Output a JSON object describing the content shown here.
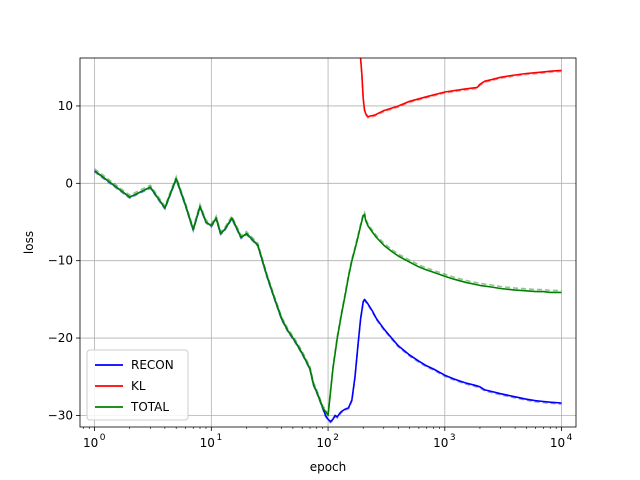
{
  "chart_data": {
    "type": "line",
    "title": "",
    "xlabel": "epoch",
    "ylabel": "loss",
    "xscale": "log",
    "xlim": [
      0.75,
      13300
    ],
    "ylim": [
      -31.5,
      16.2
    ],
    "grid": true,
    "legend_position": "lower-left",
    "x_ticks": [
      {
        "value": 1,
        "base": "10",
        "exp": "0"
      },
      {
        "value": 10,
        "base": "10",
        "exp": "1"
      },
      {
        "value": 100,
        "base": "10",
        "exp": "2"
      },
      {
        "value": 1000,
        "base": "10",
        "exp": "3"
      },
      {
        "value": 10000,
        "base": "10",
        "exp": "4"
      }
    ],
    "y_ticks": [
      {
        "value": 10,
        "label": "10"
      },
      {
        "value": 0,
        "label": "0"
      },
      {
        "value": -10,
        "label": "−10"
      },
      {
        "value": -20,
        "label": "−20"
      },
      {
        "value": -30,
        "label": "−30"
      }
    ],
    "series": [
      {
        "name": "RECON",
        "color": "#0000ff",
        "x": [
          1,
          2,
          3,
          4,
          5,
          6,
          7,
          8,
          9,
          10,
          11,
          12,
          13,
          15,
          18,
          20,
          25,
          30,
          35,
          40,
          45,
          50,
          55,
          60,
          65,
          70,
          75,
          80,
          85,
          90,
          95,
          100,
          105,
          110,
          115,
          120,
          125,
          130,
          140,
          150,
          160,
          170,
          180,
          190,
          200,
          205,
          210,
          220,
          240,
          260,
          300,
          350,
          400,
          500,
          600,
          700,
          800,
          1000,
          1200,
          1500,
          1800,
          2000,
          2200,
          2500,
          3000,
          4000,
          5000,
          6000,
          7000,
          8000,
          10000
        ],
        "y": [
          1.6,
          -1.8,
          -0.5,
          -3.2,
          0.6,
          -2.8,
          -6.0,
          -3.0,
          -5.0,
          -5.5,
          -4.5,
          -6.5,
          -6.0,
          -4.5,
          -7.0,
          -6.5,
          -8.0,
          -12.0,
          -15.0,
          -17.5,
          -19.0,
          -20.0,
          -21.0,
          -22.0,
          -23.0,
          -24.0,
          -26.0,
          -27.0,
          -28.0,
          -29.0,
          -30.0,
          -30.5,
          -30.8,
          -30.5,
          -30.0,
          -30.2,
          -29.8,
          -29.5,
          -29.2,
          -29.0,
          -28.0,
          -25.0,
          -21.0,
          -17.5,
          -15.3,
          -15.0,
          -15.2,
          -15.6,
          -16.5,
          -17.5,
          -18.8,
          -20.0,
          -21.0,
          -22.2,
          -23.0,
          -23.6,
          -24.0,
          -24.8,
          -25.3,
          -25.8,
          -26.1,
          -26.3,
          -26.7,
          -26.9,
          -27.2,
          -27.6,
          -27.9,
          -28.1,
          -28.2,
          -28.3,
          -28.4
        ]
      },
      {
        "name": "KL",
        "color": "#ff0000",
        "x": [
          190,
          195,
          200,
          205,
          210,
          220,
          230,
          250,
          300,
          400,
          500,
          700,
          1000,
          1500,
          1900,
          2000,
          2200,
          2500,
          3000,
          4000,
          5000,
          6000,
          7000,
          8000,
          10000
        ],
        "y": [
          16.2,
          14.0,
          11.0,
          9.5,
          9.0,
          8.6,
          8.7,
          8.8,
          9.4,
          10.0,
          10.6,
          11.2,
          11.8,
          12.2,
          12.4,
          12.8,
          13.2,
          13.4,
          13.7,
          14.0,
          14.2,
          14.3,
          14.4,
          14.5,
          14.6
        ]
      },
      {
        "name": "TOTAL",
        "color": "#008000",
        "x": [
          1,
          2,
          3,
          4,
          5,
          6,
          7,
          8,
          9,
          10,
          11,
          12,
          13,
          15,
          18,
          20,
          25,
          30,
          35,
          40,
          45,
          50,
          55,
          60,
          65,
          70,
          75,
          80,
          85,
          90,
          95,
          100,
          105,
          110,
          120,
          130,
          140,
          150,
          160,
          170,
          180,
          190,
          200,
          205,
          210,
          220,
          240,
          260,
          300,
          350,
          400,
          500,
          600,
          700,
          800,
          1000,
          1200,
          1500,
          2000,
          2500,
          3000,
          4000,
          5000,
          6000,
          7000,
          8000,
          10000
        ],
        "y": [
          1.6,
          -1.8,
          -0.5,
          -3.2,
          0.6,
          -2.8,
          -6.0,
          -3.0,
          -5.0,
          -5.5,
          -4.5,
          -6.5,
          -6.0,
          -4.5,
          -7.0,
          -6.5,
          -8.0,
          -12.0,
          -15.0,
          -17.5,
          -19.0,
          -20.0,
          -21.0,
          -22.0,
          -23.0,
          -24.0,
          -26.0,
          -27.0,
          -28.0,
          -29.0,
          -29.5,
          -30.0,
          -27.0,
          -24.0,
          -20.0,
          -17.0,
          -14.5,
          -12.0,
          -10.0,
          -8.5,
          -7.0,
          -5.5,
          -4.2,
          -4.0,
          -4.8,
          -5.5,
          -6.3,
          -7.0,
          -8.0,
          -8.8,
          -9.4,
          -10.2,
          -10.8,
          -11.2,
          -11.5,
          -12.0,
          -12.4,
          -12.8,
          -13.2,
          -13.4,
          -13.6,
          -13.8,
          -13.9,
          -14.0,
          -14.0,
          -14.1,
          -14.1
        ]
      }
    ]
  }
}
